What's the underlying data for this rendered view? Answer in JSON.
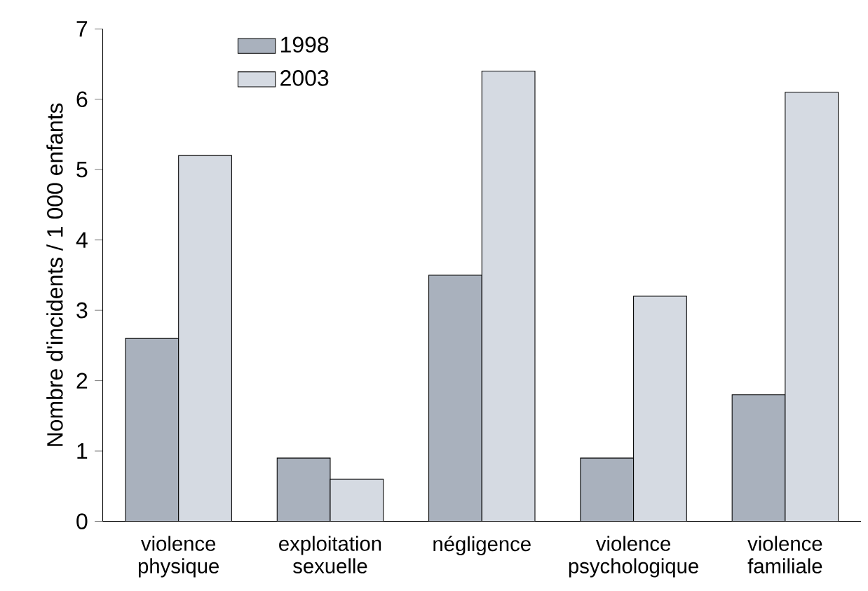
{
  "chart_data": {
    "type": "bar",
    "ylabel": "Nombre d'incidents / 1 000 enfants",
    "categories": [
      "violence physique",
      "exploitation sexuelle",
      "négligence",
      "violence psychologique",
      "violence familiale"
    ],
    "series": [
      {
        "name": "1998",
        "color": "#a9b1bd",
        "values": [
          2.6,
          0.9,
          3.5,
          0.9,
          1.8
        ]
      },
      {
        "name": "2003",
        "color": "#d5dae2",
        "values": [
          5.2,
          0.6,
          6.4,
          3.2,
          6.1
        ]
      }
    ],
    "ylim": [
      0,
      7
    ],
    "yticks": [
      0,
      1,
      2,
      3,
      4,
      5,
      6,
      7
    ],
    "grid": false,
    "legend": "top left"
  }
}
